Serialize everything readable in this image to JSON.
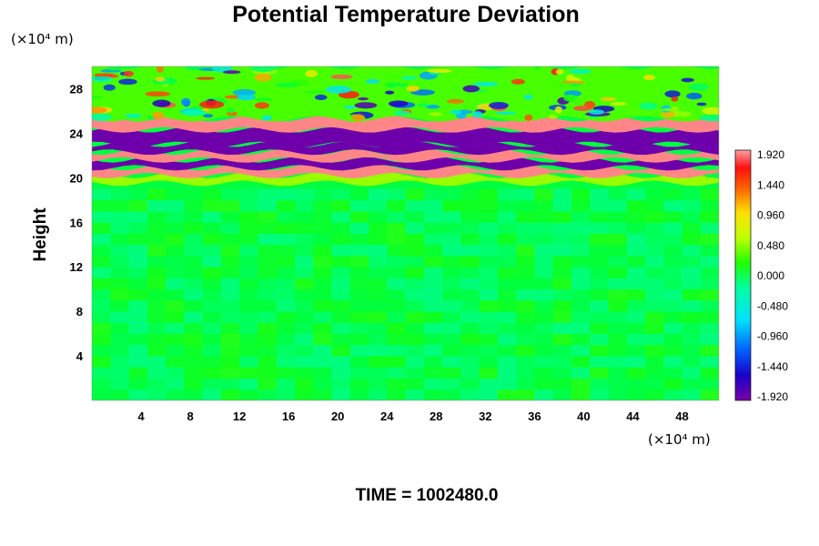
{
  "chart_data": {
    "type": "heatmap",
    "title": "Potential Temperature Deviation",
    "ylabel": "Height",
    "y_unit": "(×10⁴ m)",
    "x_unit": "(×10⁴ m)",
    "xlabel": "",
    "x_ticks": [
      4,
      8,
      12,
      16,
      20,
      24,
      28,
      32,
      36,
      40,
      44,
      48
    ],
    "y_ticks": [
      4,
      8,
      12,
      16,
      20,
      24,
      28
    ],
    "xlim": [
      0,
      51
    ],
    "ylim": [
      0,
      30
    ],
    "colorbar": {
      "ticks": [
        "1.920",
        "1.440",
        "0.960",
        "0.480",
        "0.000",
        "-0.480",
        "-0.960",
        "-1.440",
        "-1.920"
      ],
      "range": [
        -2.0,
        2.0
      ],
      "position": "right"
    },
    "footer": "TIME = 1002480.0",
    "bands": [
      {
        "y_range": [
          0,
          19
        ],
        "value": 0.0,
        "description_value": "near zero"
      },
      {
        "y_range": [
          19.5,
          20.2
        ],
        "value": 0.5
      },
      {
        "y_range": [
          20.2,
          20.9
        ],
        "value": 1.95
      },
      {
        "y_range": [
          20.9,
          21.6
        ],
        "value": -1.95
      },
      {
        "y_range": [
          21.6,
          22.3
        ],
        "value": 1.95
      },
      {
        "y_range": [
          22.3,
          23.0
        ],
        "value": -1.95
      },
      {
        "y_range": [
          23.0,
          24.3
        ],
        "value": -1.95
      },
      {
        "y_range": [
          24.3,
          25.3
        ],
        "value": 1.95
      },
      {
        "y_range": [
          25.3,
          30
        ],
        "value": 0.3
      }
    ]
  }
}
